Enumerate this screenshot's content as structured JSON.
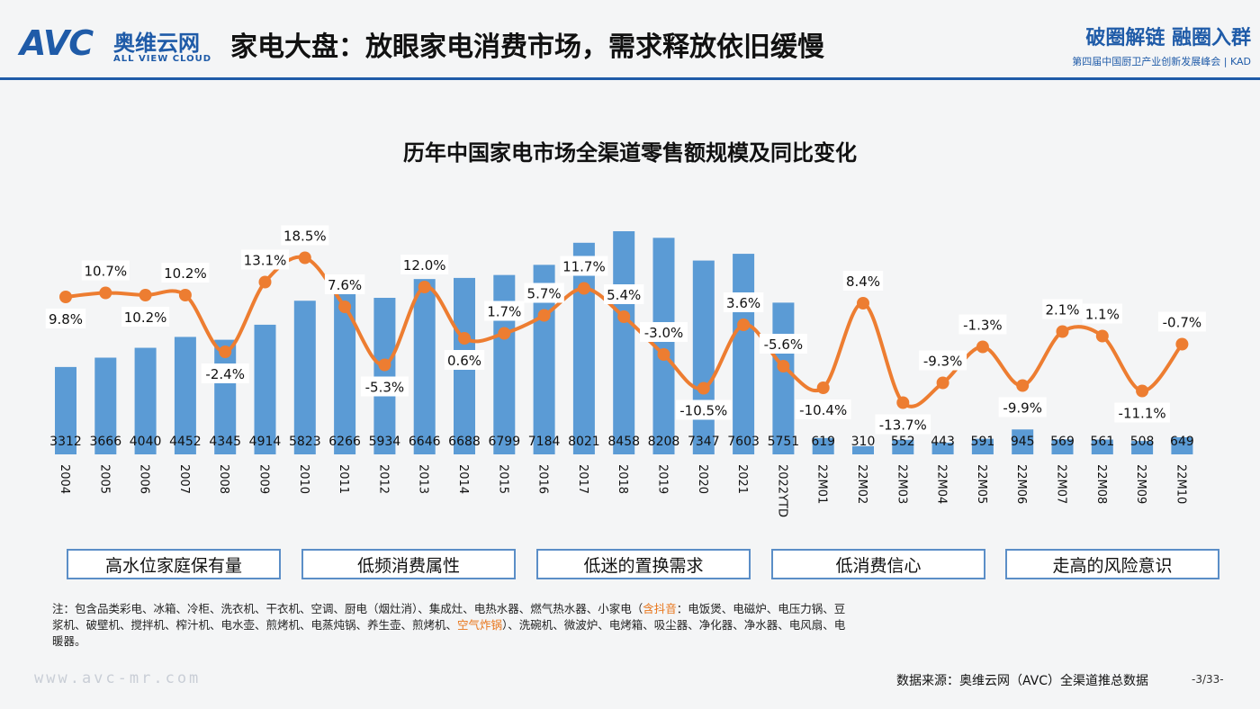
{
  "header": {
    "logo_mark": "AVC",
    "logo_cn": "奥维云网",
    "logo_en": "ALL VIEW CLOUD",
    "title": "家电大盘：放眼家电消费市场，需求释放依旧缓慢",
    "event_main": "破圈解链 融圈入群",
    "event_sub": "第四届中国厨卫产业创新发展峰会 | KAD"
  },
  "colors": {
    "bar": "#5b9bd5",
    "line": "#ed7d31",
    "accent": "#1f5ba8"
  },
  "chart_data": {
    "type": "bar+line",
    "title": "历年中国家电市场全渠道零售额规模及同比变化",
    "categories": [
      "2004",
      "2005",
      "2006",
      "2007",
      "2008",
      "2009",
      "2010",
      "2011",
      "2012",
      "2013",
      "2014",
      "2015",
      "2016",
      "2017",
      "2018",
      "2019",
      "2020",
      "2021",
      "2022YTD",
      "22M01",
      "22M02",
      "22M03",
      "22M04",
      "22M05",
      "22M06",
      "22M07",
      "22M08",
      "22M09",
      "22M10"
    ],
    "series": [
      {
        "type": "bar",
        "values": [
          3312,
          3666,
          4040,
          4452,
          4345,
          4914,
          5823,
          6266,
          5934,
          6646,
          6688,
          6799,
          7184,
          8021,
          8458,
          8208,
          7347,
          7603,
          5751,
          619,
          310,
          552,
          443,
          591,
          945,
          569,
          561,
          508,
          649
        ]
      },
      {
        "type": "line",
        "values": [
          9.8,
          10.7,
          10.2,
          10.2,
          -2.4,
          13.1,
          18.5,
          7.6,
          -5.3,
          12.0,
          0.6,
          1.7,
          5.7,
          11.7,
          5.4,
          -3.0,
          -10.5,
          3.6,
          -5.6,
          -10.4,
          8.4,
          -13.7,
          -9.3,
          -1.3,
          -9.9,
          2.1,
          1.1,
          -11.1,
          -0.7
        ]
      }
    ],
    "bar_labels": [
      "3312",
      "3666",
      "4040",
      "4452",
      "4345",
      "4914",
      "5823",
      "6266",
      "5934",
      "6646",
      "6688",
      "6799",
      "7184",
      "8021",
      "8458",
      "8208",
      "7347",
      "7603",
      "5751",
      "619",
      "310",
      "552",
      "443",
      "591",
      "945",
      "569",
      "561",
      "508",
      "649"
    ],
    "line_labels": [
      "9.8%",
      "10.7%",
      "10.2%",
      "10.2%",
      "-2.4%",
      "13.1%",
      "18.5%",
      "7.6%",
      "-5.3%",
      "12.0%",
      "0.6%",
      "1.7%",
      "5.7%",
      "11.7%",
      "5.4%",
      "-3.0%",
      "-10.5%",
      "3.6%",
      "-5.6%",
      "-10.4%",
      "8.4%",
      "-13.7%",
      "-9.3%",
      "-1.3%",
      "-9.9%",
      "2.1%",
      "1.1%",
      "-11.1%",
      "-0.7%"
    ]
  },
  "tags": [
    "高水位家庭保有量",
    "低频消费属性",
    "低迷的置换需求",
    "低消费信心",
    "走高的风险意识"
  ],
  "note": {
    "part1": "注：包含品类彩电、冰箱、冷柜、洗衣机、干衣机、空调、厨电（烟灶消）、集成灶、电热水器、燃气热水器、小家电（",
    "hl1": "含抖音",
    "part2": "：电饭煲、电磁炉、电压力锅、豆浆机、破壁机、搅拌机、榨汁机、电水壶、煎烤机、电蒸炖锅、养生壶、煎烤机、",
    "hl2": "空气炸锅",
    "part3": "）、洗碗机、微波炉、电烤箱、吸尘器、净化器、净水器、电风扇、电暖器。"
  },
  "footer": {
    "url": "www.avc-mr.com",
    "source": "数据来源：奥维云网（AVC）全渠道推总数据",
    "page": "-3/33-"
  }
}
